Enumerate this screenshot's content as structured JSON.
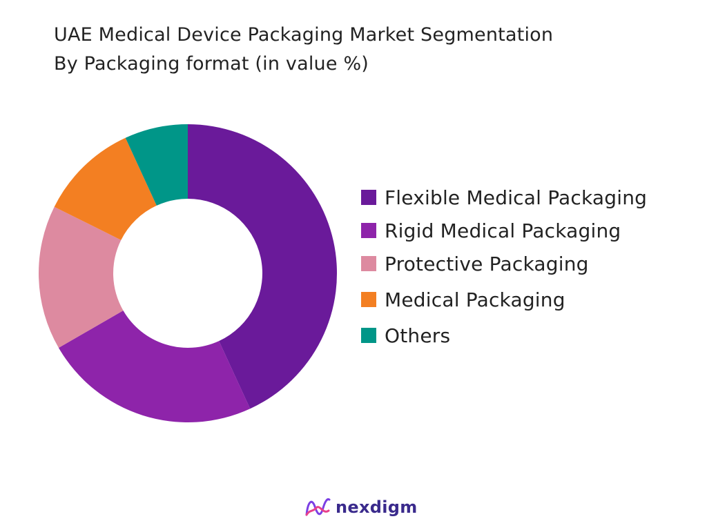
{
  "chart_data": {
    "type": "pie",
    "title": "UAE Medical Device Packaging Market Segmentation",
    "subtitle": "By Packaging format (in value %)",
    "legend_position": "right",
    "donut": true,
    "categories": [
      "Flexible Medical Packaging",
      "Rigid Medical Packaging",
      "Protective Packaging",
      "Medical Packaging",
      "Others"
    ],
    "values": [
      44,
      24,
      16,
      11,
      7
    ],
    "colors": [
      "#6a1a9a",
      "#8e24aa",
      "#dd8aa0",
      "#f37f22",
      "#009688"
    ]
  },
  "brand": {
    "name": "nexdigm",
    "logo_icon": "nexdigm-logo-icon"
  }
}
